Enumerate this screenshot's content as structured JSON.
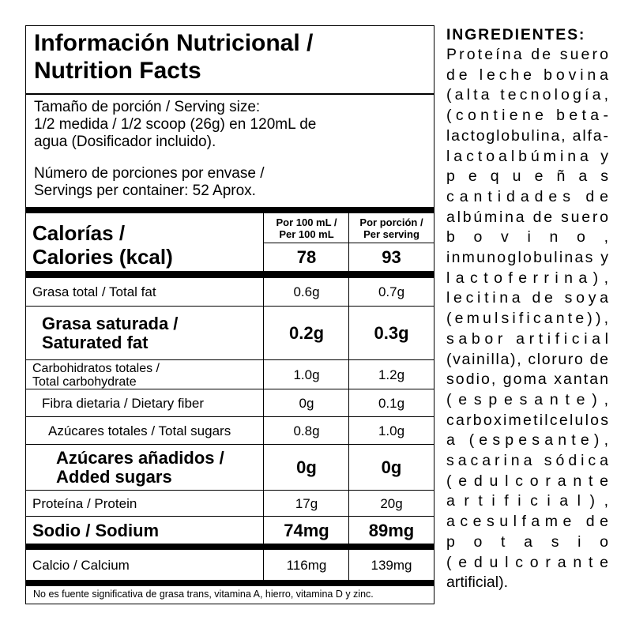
{
  "facts": {
    "title_line1": "Información Nutricional /",
    "title_line2": "Nutrition Facts",
    "serving_line1": "Tamaño de porción / Serving size:",
    "serving_line2": "1/2 medida / 1/2 scoop (26g) en 120mL de",
    "serving_line3": "agua (Dosificador incluido).",
    "servings_line1": "Número de porciones por envase /",
    "servings_line2": "Servings per container: 52 Aprox.",
    "calories_label_line1": "Calorías /",
    "calories_label_line2": "Calories (kcal)",
    "col1_header_line1": "Por 100 mL /",
    "col1_header_line2": "Per 100 mL",
    "col2_header_line1": "Por porción /",
    "col2_header_line2": "Per serving",
    "calories_per100": "78",
    "calories_perserving": "93",
    "rows": [
      {
        "label": "Grasa total / Total fat",
        "v1": "0.6g",
        "v2": "0.7g"
      },
      {
        "label_line1": "Grasa saturada /",
        "label_line2": "Saturated fat",
        "v1": "0.2g",
        "v2": "0.3g"
      },
      {
        "label_line1": "Carbohidratos totales /",
        "label_line2": "Total carbohydrate",
        "v1": "1.0g",
        "v2": "1.2g"
      },
      {
        "label": "Fibra dietaria / Dietary fiber",
        "v1": "0g",
        "v2": "0.1g"
      },
      {
        "label": "Azúcares totales / Total sugars",
        "v1": "0.8g",
        "v2": "1.0g"
      },
      {
        "label_line1": "Azúcares añadidos /",
        "label_line2": "Added sugars",
        "v1": "0g",
        "v2": "0g"
      },
      {
        "label": "Proteína / Protein",
        "v1": "17g",
        "v2": "20g"
      },
      {
        "label": "Sodio / Sodium",
        "v1": "74mg",
        "v2": "89mg"
      },
      {
        "label": "Calcio / Calcium",
        "v1": "116mg",
        "v2": "139mg"
      }
    ],
    "footnote": "No es fuente significativa de grasa trans, vitamina A, hierro, vitamina D y zinc."
  },
  "ingredients": {
    "title": "INGREDIENTES:",
    "lines": [
      "Proteína de suero",
      "de leche bovina",
      "(alta tecnología,",
      "(contiene beta-",
      "lactoglobulina, alfa-",
      "lactoalbúmina y",
      "pequeñas",
      "cantidades de",
      "albúmina de suero",
      "bovino,",
      "inmunoglobulinas y",
      "lactoferrina),",
      "lecitina de soya",
      "(emulsificante)),",
      "sabor artificial",
      "(vainilla), cloruro de",
      "sodio, goma xantan",
      "(espesante),",
      "carboximetilcelulos",
      "a (espesante),",
      "sacarina sódica",
      "(edulcorante",
      "artificial),",
      "acesulfame de",
      "potasio",
      "(edulcorante",
      "artificial)."
    ]
  }
}
